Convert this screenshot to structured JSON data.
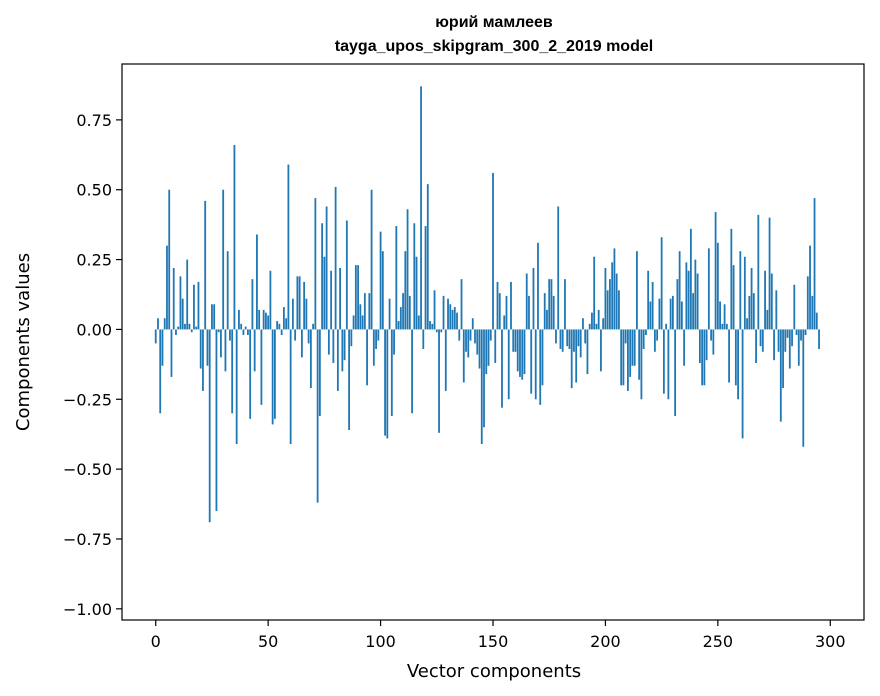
{
  "chart_data": {
    "type": "bar",
    "title_line1": "юрий мамлеев",
    "title_line2": "tayga_upos_skipgram_300_2_2019 model",
    "xlabel": "Vector components",
    "ylabel": "Components values",
    "xlim": [
      -15,
      315
    ],
    "ylim": [
      -1.04,
      0.95
    ],
    "xticks": [
      0,
      50,
      100,
      150,
      200,
      250,
      300
    ],
    "xtick_labels": [
      "0",
      "50",
      "100",
      "150",
      "200",
      "250",
      "300"
    ],
    "yticks": [
      -1.0,
      -0.75,
      -0.5,
      -0.25,
      0.0,
      0.25,
      0.5,
      0.75
    ],
    "ytick_labels": [
      "−1.00",
      "−0.75",
      "−0.50",
      "−0.25",
      "0.00",
      "0.25",
      "0.50",
      "0.75"
    ],
    "bar_color": "#1f77b4",
    "grid": false,
    "x": "0..299",
    "values": [
      -0.05,
      0.04,
      -0.3,
      -0.13,
      0.04,
      0.3,
      0.5,
      -0.17,
      0.22,
      -0.02,
      0.01,
      0.19,
      0.11,
      0.02,
      0.25,
      0.02,
      -0.01,
      0.16,
      0.01,
      0.17,
      -0.14,
      -0.22,
      0.46,
      -0.13,
      -0.69,
      0.09,
      0.09,
      -0.65,
      -0.01,
      -0.1,
      0.5,
      -0.15,
      0.28,
      -0.04,
      -0.3,
      0.66,
      -0.41,
      0.07,
      0.02,
      -0.02,
      0.01,
      -0.02,
      -0.32,
      0.18,
      -0.15,
      0.34,
      0.07,
      -0.27,
      0.07,
      0.06,
      0.05,
      0.21,
      -0.34,
      -0.32,
      0.03,
      0.02,
      -0.02,
      0.08,
      0.04,
      0.59,
      -0.41,
      0.11,
      -0.04,
      0.19,
      0.19,
      -0.1,
      0.17,
      0.11,
      -0.05,
      -0.21,
      0.02,
      0.47,
      -0.62,
      -0.31,
      0.38,
      0.26,
      0.44,
      -0.09,
      0.21,
      -0.12,
      0.51,
      -0.22,
      0.22,
      -0.15,
      -0.11,
      0.39,
      -0.36,
      -0.06,
      0.05,
      0.23,
      0.23,
      0.09,
      0.05,
      0.13,
      -0.2,
      0.13,
      0.5,
      -0.13,
      -0.07,
      -0.04,
      0.35,
      0.28,
      -0.38,
      -0.39,
      0.11,
      -0.31,
      -0.09,
      0.37,
      0.03,
      0.08,
      0.13,
      0.28,
      0.43,
      0.12,
      -0.3,
      0.38,
      0.26,
      0.05,
      0.87,
      -0.07,
      0.37,
      0.52,
      0.03,
      0.02,
      0.14,
      -0.01,
      -0.37,
      -0.01,
      0.12,
      -0.22,
      0.11,
      0.09,
      0.07,
      0.08,
      0.06,
      -0.04,
      0.18,
      -0.19,
      -0.08,
      -0.1,
      -0.04,
      0.04,
      -0.05,
      -0.09,
      -0.14,
      -0.41,
      -0.35,
      -0.16,
      -0.13,
      -0.04,
      0.56,
      -0.12,
      0.17,
      0.13,
      -0.28,
      0.05,
      0.12,
      -0.25,
      0.17,
      -0.08,
      -0.08,
      -0.15,
      -0.17,
      -0.18,
      -0.16,
      0.2,
      0.12,
      -0.23,
      0.22,
      -0.25,
      0.31,
      -0.27,
      -0.2,
      0.13,
      0.07,
      0.18,
      0.18,
      0.12,
      -0.05,
      0.44,
      -0.07,
      -0.08,
      0.18,
      -0.06,
      -0.07,
      -0.21,
      -0.08,
      -0.19,
      -0.06,
      -0.1,
      0.04,
      -0.05,
      -0.16,
      0.02,
      0.06,
      0.26,
      0.02,
      0.07,
      -0.15,
      0.04,
      0.22,
      0.14,
      0.18,
      0.24,
      0.29,
      0.2,
      0.14,
      -0.2,
      -0.2,
      -0.05,
      -0.22,
      -0.17,
      -0.13,
      -0.13,
      0.28,
      -0.18,
      -0.25,
      -0.07,
      -0.02,
      0.21,
      0.1,
      0.17,
      -0.08,
      -0.04,
      0.11,
      0.33,
      -0.23,
      0.02,
      -0.25,
      0.11,
      0.12,
      -0.31,
      0.18,
      0.28,
      0.1,
      -0.13,
      0.24,
      0.21,
      0.36,
      0.13,
      0.25,
      0.2,
      -0.12,
      -0.2,
      -0.2,
      -0.11,
      0.29,
      -0.04,
      -0.09,
      0.42,
      0.31,
      0.1,
      0.02,
      0.09,
      0.02,
      -0.19,
      0.36,
      0.23,
      -0.2,
      -0.25,
      0.28,
      -0.39,
      0.26,
      0.04,
      0.12,
      0.22,
      0.13,
      -0.12,
      0.41,
      -0.06,
      -0.08,
      0.21,
      0.07,
      0.4,
      0.2,
      -0.11,
      0.14,
      -0.08,
      -0.33,
      -0.21,
      -0.08,
      -0.03,
      -0.14,
      -0.06,
      0.16,
      -0.02,
      -0.13,
      -0.04,
      -0.42,
      -0.02,
      0.19,
      0.3,
      0.12,
      0.47,
      0.06,
      -0.07
    ]
  }
}
